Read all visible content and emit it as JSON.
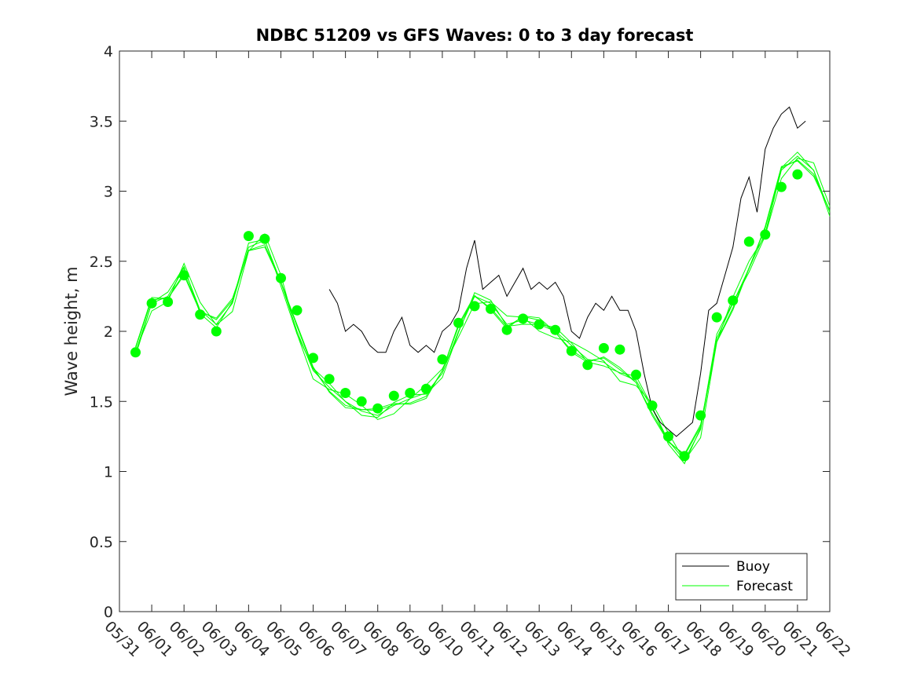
{
  "chart_data": {
    "type": "line",
    "title": "NDBC 51209 vs GFS Waves: 0 to 3 day forecast",
    "xlabel": "",
    "ylabel": "Wave height, m",
    "xlim": [
      "05/31",
      "06/22"
    ],
    "ylim": [
      0,
      4
    ],
    "x_ticks": [
      "05/31",
      "06/01",
      "06/02",
      "06/03",
      "06/04",
      "06/05",
      "06/06",
      "06/07",
      "06/08",
      "06/09",
      "06/10",
      "06/11",
      "06/12",
      "06/13",
      "06/14",
      "06/15",
      "06/16",
      "06/17",
      "06/18",
      "06/19",
      "06/20",
      "06/21",
      "06/22"
    ],
    "y_ticks": [
      0,
      0.5,
      1,
      1.5,
      2,
      2.5,
      3,
      3.5,
      4
    ],
    "y_tick_labels": [
      "0",
      "0.5",
      "1",
      "1.5",
      "2",
      "2.5",
      "3",
      "3.5",
      "4"
    ],
    "grid": false,
    "legend": {
      "placement": "bottom-right",
      "entries": [
        "Buoy",
        "Forecast"
      ]
    },
    "colors": {
      "buoy": "#000000",
      "forecast": "#00ff00"
    },
    "series": [
      {
        "name": "Buoy",
        "style": "thin-line",
        "x": [
          "06/06 12:00",
          "06/06 18:00",
          "06/07 00:00",
          "06/07 06:00",
          "06/07 12:00",
          "06/07 18:00",
          "06/08 00:00",
          "06/08 06:00",
          "06/08 12:00",
          "06/08 18:00",
          "06/09 00:00",
          "06/09 06:00",
          "06/09 12:00",
          "06/09 18:00",
          "06/10 00:00",
          "06/10 06:00",
          "06/10 12:00",
          "06/10 18:00",
          "06/11 00:00",
          "06/11 06:00",
          "06/11 12:00",
          "06/11 18:00",
          "06/12 00:00",
          "06/12 06:00",
          "06/12 12:00",
          "06/12 18:00",
          "06/13 00:00",
          "06/13 06:00",
          "06/13 12:00",
          "06/13 18:00",
          "06/14 00:00",
          "06/14 06:00",
          "06/14 12:00",
          "06/14 18:00",
          "06/15 00:00",
          "06/15 06:00",
          "06/15 12:00",
          "06/15 18:00",
          "06/16 00:00",
          "06/16 06:00",
          "06/16 12:00",
          "06/16 18:00",
          "06/17 00:00",
          "06/17 06:00",
          "06/17 12:00",
          "06/17 18:00",
          "06/18 00:00",
          "06/18 06:00",
          "06/18 12:00",
          "06/18 18:00",
          "06/19 00:00",
          "06/19 06:00",
          "06/19 12:00",
          "06/19 18:00",
          "06/20 00:00",
          "06/20 06:00",
          "06/20 12:00",
          "06/20 18:00",
          "06/21 00:00",
          "06/21 06:00"
        ],
        "values": [
          2.3,
          2.2,
          2.0,
          2.05,
          2.0,
          1.9,
          1.85,
          1.85,
          2.0,
          2.1,
          1.9,
          1.85,
          1.9,
          1.85,
          2.0,
          2.05,
          2.15,
          2.45,
          2.65,
          2.3,
          2.35,
          2.4,
          2.25,
          2.35,
          2.45,
          2.3,
          2.35,
          2.3,
          2.35,
          2.25,
          2.0,
          1.95,
          2.1,
          2.2,
          2.15,
          2.25,
          2.15,
          2.15,
          2.0,
          1.7,
          1.45,
          1.35,
          1.3,
          1.25,
          1.3,
          1.35,
          1.7,
          2.15,
          2.2,
          2.4,
          2.6,
          2.95,
          3.1,
          2.85,
          3.3,
          3.45,
          3.55,
          3.6,
          3.45,
          3.5
        ]
      },
      {
        "name": "Forecast",
        "style": "thin-lines",
        "x": [
          "05/31 12:00",
          "06/01 00:00",
          "06/01 12:00",
          "06/02 00:00",
          "06/02 12:00",
          "06/03 00:00",
          "06/03 12:00",
          "06/04 00:00",
          "06/04 12:00",
          "06/05 00:00",
          "06/05 12:00",
          "06/06 00:00",
          "06/06 12:00",
          "06/07 00:00",
          "06/07 12:00",
          "06/08 00:00",
          "06/08 12:00",
          "06/09 00:00",
          "06/09 12:00",
          "06/10 00:00",
          "06/10 12:00",
          "06/11 00:00",
          "06/11 12:00",
          "06/12 00:00",
          "06/12 12:00",
          "06/13 00:00",
          "06/13 12:00",
          "06/14 00:00",
          "06/14 12:00",
          "06/15 00:00",
          "06/15 12:00",
          "06/16 00:00",
          "06/16 12:00",
          "06/17 00:00",
          "06/17 12:00",
          "06/18 00:00",
          "06/18 12:00",
          "06/19 00:00",
          "06/19 12:00",
          "06/20 00:00",
          "06/20 12:00",
          "06/21 00:00",
          "06/21 12:00",
          "06/22 00:00"
        ],
        "values": [
          1.85,
          2.2,
          2.25,
          2.45,
          2.15,
          2.05,
          2.2,
          2.6,
          2.65,
          2.35,
          2.0,
          1.72,
          1.6,
          1.5,
          1.43,
          1.4,
          1.47,
          1.52,
          1.56,
          1.7,
          2.0,
          2.25,
          2.2,
          2.05,
          2.08,
          2.05,
          2.0,
          1.9,
          1.8,
          1.78,
          1.7,
          1.65,
          1.45,
          1.22,
          1.08,
          1.3,
          1.95,
          2.2,
          2.45,
          2.7,
          3.15,
          3.25,
          3.15,
          2.85
        ]
      },
      {
        "name": "Forecast",
        "style": "markers",
        "x": [
          "05/31 12:00",
          "06/01 00:00",
          "06/01 12:00",
          "06/02 00:00",
          "06/02 12:00",
          "06/03 00:00",
          "06/04 00:00",
          "06/04 12:00",
          "06/05 00:00",
          "06/05 12:00",
          "06/06 00:00",
          "06/06 12:00",
          "06/07 00:00",
          "06/07 12:00",
          "06/08 00:00",
          "06/08 12:00",
          "06/09 00:00",
          "06/09 12:00",
          "06/10 00:00",
          "06/10 12:00",
          "06/11 00:00",
          "06/11 12:00",
          "06/12 00:00",
          "06/12 12:00",
          "06/13 00:00",
          "06/13 12:00",
          "06/14 00:00",
          "06/14 12:00",
          "06/15 00:00",
          "06/15 12:00",
          "06/16 00:00",
          "06/16 12:00",
          "06/17 00:00",
          "06/17 12:00",
          "06/18 00:00",
          "06/18 12:00",
          "06/19 00:00",
          "06/19 12:00",
          "06/20 00:00",
          "06/20 12:00",
          "06/21 00:00"
        ],
        "values": [
          1.85,
          2.2,
          2.21,
          2.4,
          2.12,
          2.0,
          2.68,
          2.66,
          2.38,
          2.15,
          1.81,
          1.66,
          1.56,
          1.5,
          1.45,
          1.54,
          1.56,
          1.59,
          1.8,
          2.06,
          2.18,
          2.16,
          2.01,
          2.09,
          2.05,
          2.01,
          1.86,
          1.76,
          1.88,
          1.87,
          1.69,
          1.47,
          1.25,
          1.11,
          1.4,
          2.1,
          2.22,
          2.64,
          2.69,
          3.03,
          3.12
        ]
      }
    ]
  }
}
